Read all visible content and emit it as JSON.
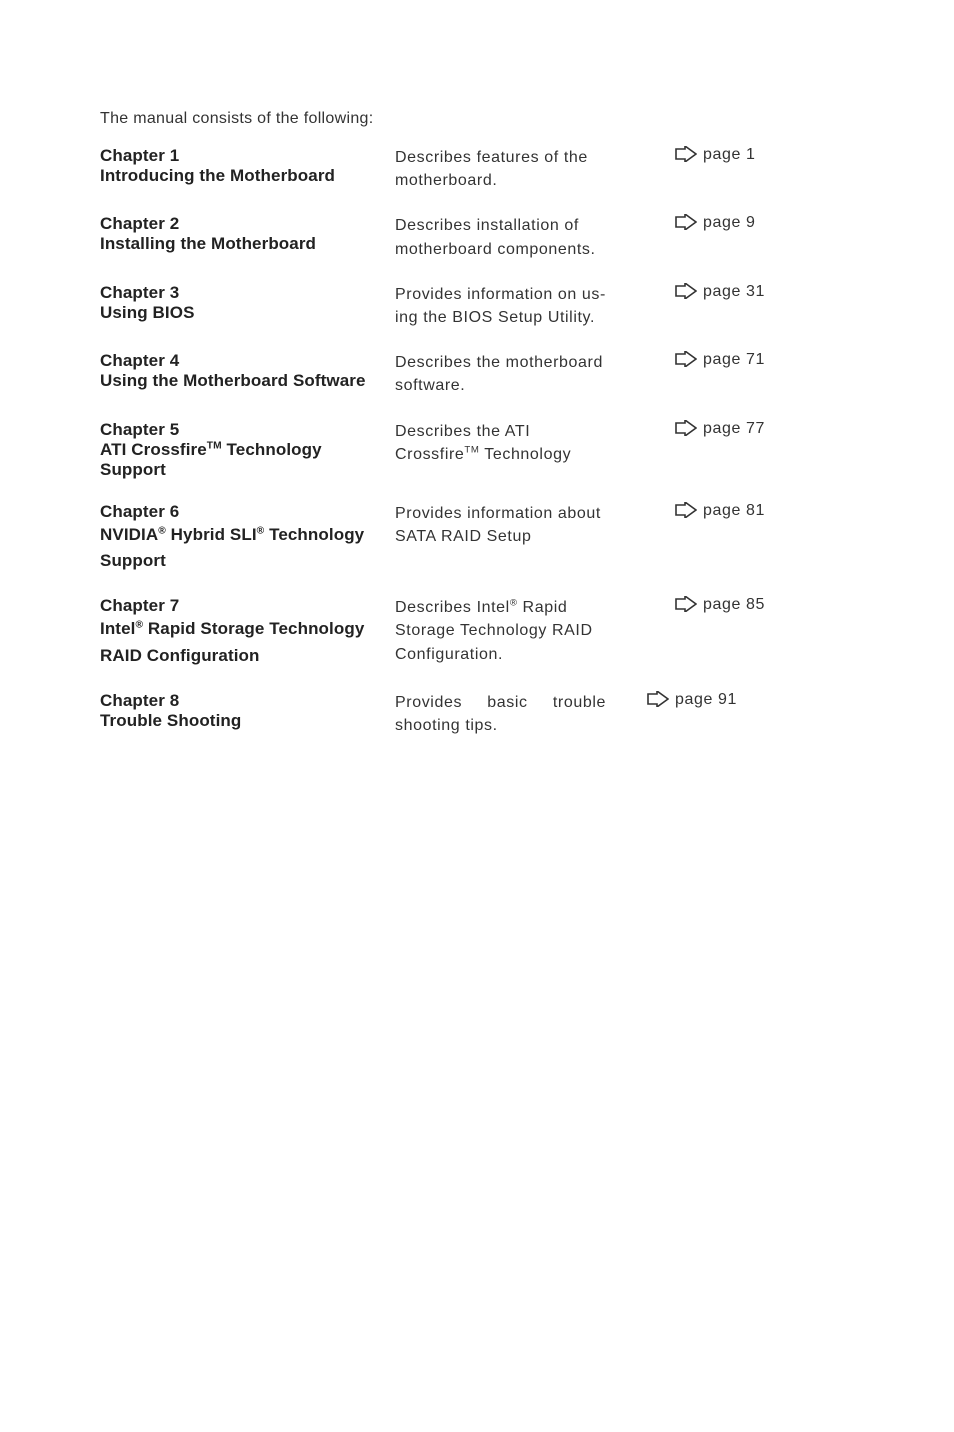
{
  "intro": "The manual consists of the following:",
  "arrow_color": "#333333",
  "rows": [
    {
      "title": "Chapter 1",
      "subtitle": "Introducing the Motherboard",
      "desc_lines": [
        "Describes features of the",
        "motherboard."
      ],
      "page": "page 1"
    },
    {
      "title": "Chapter 2",
      "subtitle": "Installing the Motherboard",
      "desc_lines": [
        "Describes   installation   of",
        "motherboard components."
      ],
      "page": "page 9"
    },
    {
      "title": "Chapter 3",
      "subtitle": "Using BIOS",
      "desc_lines": [
        "Provides information on us-",
        "ing the BIOS Setup Utility."
      ],
      "page": "page 31"
    },
    {
      "title": "Chapter 4",
      "subtitle": "Using the Motherboard Software",
      "desc_lines": [
        "Describes the motherboard",
        "software."
      ],
      "page": "page 71",
      "desc_second_in_left": true
    },
    {
      "title": "Chapter 5",
      "subtitle_html": "ATI Crossfire<span class='sup'>TM</span> Technology Support",
      "desc_lines": [
        "Describes the ATI",
        "Crossfire<span class='sup'>TM</span> Technology"
      ],
      "page": "page 77",
      "desc_second_in_left": true
    },
    {
      "title": "Chapter 6",
      "subtitle_html": "NVIDIA<span class='sup'>®</span> Hybrid SLI<span class='sup'>®</span> Technology Support",
      "desc_lines": [
        "Provides information about",
        "SATA RAID Setup"
      ],
      "page": "page 81",
      "desc_second_in_left": true,
      "subtitle_multiline": true
    },
    {
      "title": "Chapter 7",
      "subtitle_html": "Intel<span class='sup'>®</span> Rapid Storage Technology RAID Configuration",
      "desc_lines": [
        "Describes      Intel<span class='sup'>®</span>     Rapid",
        "Storage   Technology   RAID",
        "Configuration."
      ],
      "page": "page 85",
      "subtitle_multiline": true,
      "desc_overflow_left": true
    },
    {
      "title": "Chapter 8",
      "subtitle": "Trouble Shooting",
      "desc_lines": [
        "Provides     basic     trouble",
        "shooting tips."
      ],
      "page": "page 91",
      "arrow_tight": true
    }
  ]
}
